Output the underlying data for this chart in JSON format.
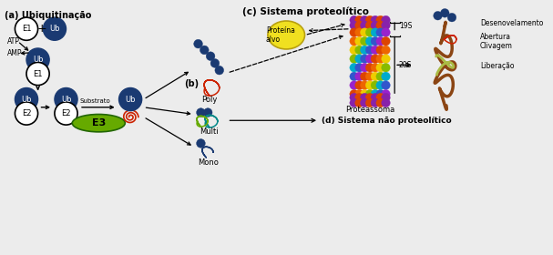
{
  "bg_color": "#ececec",
  "navy": "#1a3a72",
  "red": "#cc2200",
  "teal": "#008888",
  "green": "#66aa00",
  "dark_green": "#226600",
  "yellow": "#f0e020",
  "brown": "#8B4513",
  "purple": "#8822aa",
  "orange": "#dd6600",
  "figsize": [
    6.07,
    2.8
  ],
  "dpi": 100,
  "sec_a": "(a) Ubiquitinação",
  "sec_b": "(b)",
  "sec_c": "(c) Sistema proteolítico",
  "sec_d": "(d) Sistema não proteolítico",
  "lbl_e1": "E1",
  "lbl_ub": "Ub",
  "lbl_e2": "E2",
  "lbl_e3": "E3",
  "lbl_atp": "ATP",
  "lbl_amp": "AMP",
  "lbl_substrato": "Substrato",
  "lbl_proteassoma": "Proteassoma",
  "lbl_19s": "19S",
  "lbl_20s": "20S",
  "lbl_proteina_alvo": "Proteína\nalvo",
  "lbl_poly": "Poly",
  "lbl_multi": "Multi",
  "lbl_mono": "Mono",
  "lbl_desenov": "Desenovelamento",
  "lbl_abertura": "Abertura",
  "lbl_clivagem": "Clivagem",
  "lbl_liberacao": "Liberação"
}
